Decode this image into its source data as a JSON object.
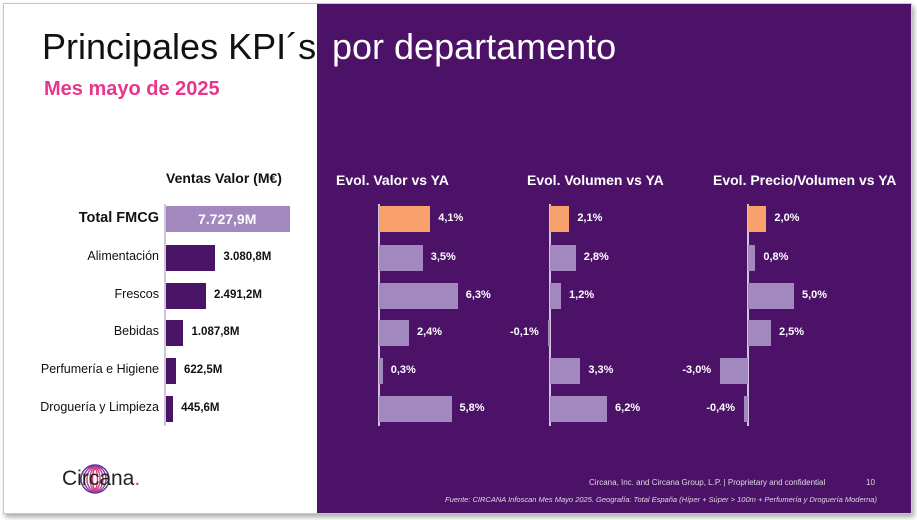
{
  "title_left": "Principales KPI´s",
  "title_right": "por departamento",
  "subtitle": "Mes mayo de 2025",
  "colors": {
    "panel_bg": "#4c1268",
    "accent_pink": "#e8368a",
    "bar_dark": "#4a1466",
    "bar_light": "#a387bf",
    "bar_orange": "#f9a16c"
  },
  "chart_data": [
    {
      "type": "bar",
      "title": "Ventas Valor (M€)",
      "categories": [
        "Total FMCG",
        "Alimentación",
        "Frescos",
        "Bebidas",
        "Perfumería e Higiene",
        "Droguería y Limpieza"
      ],
      "values": [
        7727.9,
        3080.8,
        2491.2,
        1087.8,
        622.5,
        445.6
      ],
      "labels": [
        "7.727,9M",
        "3.080,8M",
        "2.491,2M",
        "1.087,8M",
        "622,5M",
        "445,6M"
      ]
    },
    {
      "type": "bar",
      "title": "Evol. Valor vs YA",
      "categories": [
        "Total FMCG",
        "Alimentación",
        "Frescos",
        "Bebidas",
        "Perfumería e Higiene",
        "Droguería y Limpieza"
      ],
      "values": [
        4.1,
        3.5,
        6.3,
        2.4,
        0.3,
        5.8
      ],
      "labels": [
        "4,1%",
        "3,5%",
        "6,3%",
        "2,4%",
        "0,3%",
        "5,8%"
      ]
    },
    {
      "type": "bar",
      "title": "Evol. Volumen vs YA",
      "categories": [
        "Total FMCG",
        "Alimentación",
        "Frescos",
        "Bebidas",
        "Perfumería e Higiene",
        "Droguería y Limpieza"
      ],
      "values": [
        2.1,
        2.8,
        1.2,
        -0.1,
        3.3,
        6.2
      ],
      "labels": [
        "2,1%",
        "2,8%",
        "1,2%",
        "-0,1%",
        "3,3%",
        "6,2%"
      ]
    },
    {
      "type": "bar",
      "title": "Evol. Precio/Volumen vs YA",
      "categories": [
        "Total FMCG",
        "Alimentación",
        "Frescos",
        "Bebidas",
        "Perfumería e Higiene",
        "Droguería y Limpieza"
      ],
      "values": [
        2.0,
        0.8,
        5.0,
        2.5,
        -3.0,
        -0.4
      ],
      "labels": [
        "2,0%",
        "0,8%",
        "5,0%",
        "2,5%",
        "-3,0%",
        "-0,4%"
      ]
    }
  ],
  "footer": {
    "brand": "Circana",
    "brand_dot": ".",
    "company": "Circana, Inc. and Circana Group, L.P. | Proprietary and confidential",
    "page_number": "10",
    "source": "Fuente: CIRCANA Infoscan Mes Mayo 2025. Geografía: Total España (Híper + Súper > 100m + Perfumería y Droguería Moderna)"
  }
}
